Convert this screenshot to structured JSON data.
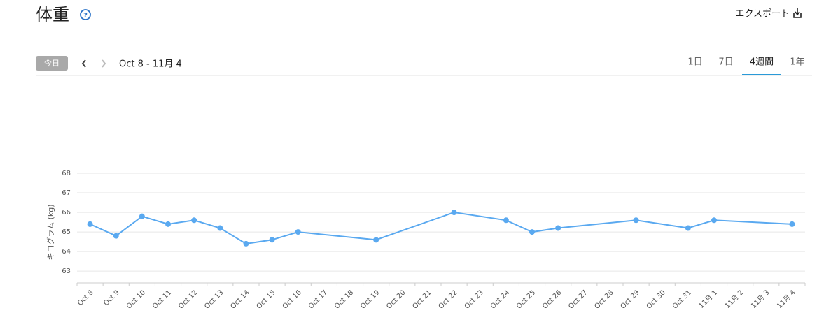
{
  "header": {
    "title": "体重",
    "help": "?",
    "export": "エクスポート",
    "today": "今日",
    "range": "Oct 8 - 11月 4",
    "tabs": [
      "1日",
      "7日",
      "4週間",
      "1年"
    ],
    "selected_tab": 2
  },
  "chart_data": {
    "type": "line",
    "y_label": "キログラム (kg)",
    "categories": [
      "Oct 8",
      "Oct 9",
      "Oct 10",
      "Oct 11",
      "Oct 12",
      "Oct 13",
      "Oct 14",
      "Oct 15",
      "Oct 16",
      "Oct 17",
      "Oct 18",
      "Oct 19",
      "Oct 20",
      "Oct 21",
      "Oct 22",
      "Oct 23",
      "Oct 24",
      "Oct 25",
      "Oct 26",
      "Oct 27",
      "Oct 28",
      "Oct 29",
      "Oct 30",
      "Oct 31",
      "11月 1",
      "11月 2",
      "11月 3",
      "11月 4"
    ],
    "series": [
      {
        "color": "#5aa9f0",
        "x": [
          "Oct 8",
          "Oct 9",
          "Oct 10",
          "Oct 11",
          "Oct 12",
          "Oct 13",
          "Oct 14",
          "Oct 15",
          "Oct 16",
          "Oct 19",
          "Oct 22",
          "Oct 24",
          "Oct 25",
          "Oct 26",
          "Oct 29",
          "Oct 31",
          "11月 1",
          "11月 4"
        ],
        "values": [
          65.4,
          64.8,
          65.8,
          65.4,
          65.6,
          65.2,
          64.4,
          64.6,
          65.0,
          64.6,
          66.0,
          65.6,
          65.0,
          65.2,
          65.6,
          65.2,
          65.6,
          65.4
        ]
      }
    ],
    "ylim": [
      62.4,
      68
    ],
    "yticks": [
      63,
      64,
      65,
      66,
      67,
      68
    ],
    "grid": true
  }
}
